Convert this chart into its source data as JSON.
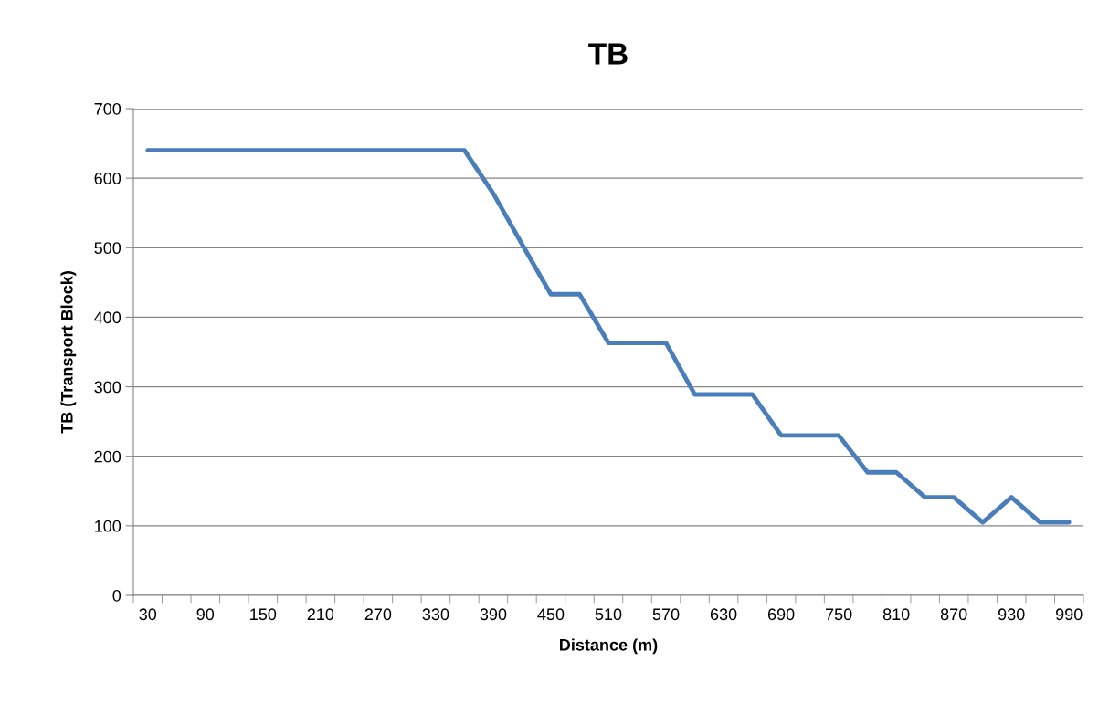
{
  "chart_data": {
    "type": "line",
    "title": "TB",
    "xlabel": "Distance (m)",
    "ylabel": "TB (Transport Block)",
    "categories": [
      "30",
      null,
      "90",
      null,
      "150",
      null,
      "210",
      null,
      "270",
      null,
      "330",
      null,
      "390",
      null,
      "450",
      null,
      "510",
      null,
      "570",
      null,
      "630",
      null,
      "690",
      null,
      "750",
      null,
      "810",
      null,
      "870",
      null,
      "930",
      null,
      "990"
    ],
    "series": [
      {
        "color": "#4a7ebb",
        "values": [
          640,
          640,
          640,
          640,
          640,
          640,
          640,
          640,
          640,
          640,
          640,
          640,
          578,
          505,
          433,
          433,
          363,
          363,
          363,
          289,
          289,
          289,
          230,
          230,
          230,
          177,
          177,
          141,
          141,
          105,
          141,
          105,
          105
        ]
      }
    ],
    "ylim": [
      0,
      700
    ],
    "yticks": [
      0,
      100,
      200,
      300,
      400,
      500,
      600,
      700
    ],
    "grid": "y",
    "marker": "none",
    "line_style": "solid"
  }
}
